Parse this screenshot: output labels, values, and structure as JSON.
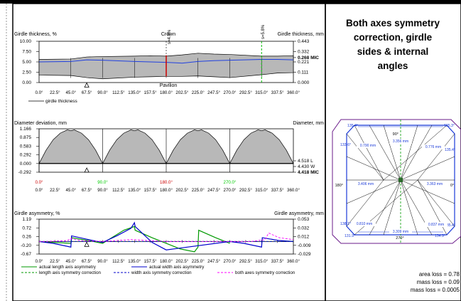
{
  "right_panel": {
    "title_lines": [
      "Both axes symmetry",
      "correction, girdle",
      "sides & internal",
      "angles"
    ],
    "loss_lines": [
      "area loss = 0.78",
      "mass loss = 0.09",
      "mass loss = 0.0005"
    ]
  },
  "diagram": {
    "corner_angles": [
      "135.4°",
      "135.3°",
      "133.6°",
      "135.4°",
      "138.1°",
      "135.4°",
      "131.9°",
      "134.9°"
    ],
    "side_angles": [
      "90°",
      "180°",
      "0°",
      "270°"
    ],
    "lengths": [
      "3.356 mm",
      "0.790 mm",
      "0.776 mm",
      "3.406 mm",
      "3.363 mm",
      "0.810 mm",
      "0.837 mm",
      "3.309 mm"
    ]
  },
  "chart_data": [
    {
      "type": "area",
      "title": "",
      "ylabel_left": "Girdle thickness, %",
      "ylabel_right": "Girdle thickness, mm",
      "yticks_left": [
        "10.00",
        "7.50",
        "5.00",
        "2.50",
        "0.00"
      ],
      "yticks_right": [
        "0.443",
        "0.332",
        "0.268 MIC",
        "0.221",
        "0.111",
        "0.000"
      ],
      "annotations": [
        "Crown",
        "Pavilion",
        "s=4.8%",
        "s=5.8%"
      ],
      "xticks": [
        "0.0°",
        "22.5°",
        "45.0°",
        "67.5°",
        "90.0°",
        "112.5°",
        "135.0°",
        "157.5°",
        "180.0°",
        "202.5°",
        "225.0°",
        "247.5°",
        "270.0°",
        "292.5°",
        "315.0°",
        "337.5°",
        "360.0°"
      ],
      "xlim": [
        0,
        360
      ],
      "ylim": [
        0,
        10
      ],
      "legend": [
        "girdle thickness"
      ],
      "x": [
        0,
        45,
        67.5,
        90,
        135,
        157.5,
        180,
        202.5,
        225,
        247.5,
        270,
        315,
        337.5,
        360
      ],
      "top": [
        5.6,
        5.7,
        6.2,
        6.3,
        6.4,
        6.5,
        6.4,
        6.7,
        7.1,
        6.9,
        6.8,
        6.4,
        6.4,
        6.5
      ],
      "bottom": [
        1.8,
        1.7,
        1.2,
        0.9,
        1.3,
        1.4,
        1.5,
        1.5,
        1.6,
        1.4,
        1.2,
        1.9,
        2.3,
        2.4
      ],
      "line": [
        5.0,
        5.1,
        5.5,
        5.4,
        5.1,
        5.0,
        4.9,
        4.7,
        5.1,
        5.3,
        5.4,
        5.6,
        5.6,
        5.5
      ]
    },
    {
      "type": "area",
      "title": "",
      "ylabel_left": "Diameter deviation, mm",
      "ylabel_right": "Diameter, mm",
      "yticks_left": [
        "1.166",
        "0.875",
        "0.583",
        "0.292",
        "0.000",
        "-0.292"
      ],
      "yticks_right": [
        "4.518 L",
        "4.430 W",
        "4.418 MIC"
      ],
      "xticks": [
        "0.0°",
        "22.5°",
        "45.0°",
        "67.5°",
        "90.0°",
        "112.5°",
        "135.0°",
        "157.5°",
        "180.0°",
        "202.5°",
        "225.0°",
        "247.5°",
        "270.0°",
        "292.5°",
        "315.0°",
        "337.5°",
        "360.0°"
      ],
      "highlight_ticks": [
        "0.0°",
        "90.0°",
        "180.0°",
        "270.0°"
      ],
      "xlim": [
        0,
        360
      ],
      "ylim": [
        -0.292,
        1.166
      ],
      "x": [
        0,
        10,
        20,
        30,
        40,
        45,
        50,
        60,
        70,
        80,
        90
      ],
      "values": [
        0.0,
        0.45,
        0.8,
        1.02,
        1.13,
        1.1,
        1.13,
        1.02,
        0.8,
        0.45,
        0.0
      ]
    },
    {
      "type": "line",
      "title": "",
      "ylabel_left": "Girdle asymmetry, %",
      "ylabel_right": "Girdle asymmetry, mm",
      "yticks_left": [
        "1.19",
        "0.72",
        "0.26",
        "-0.20",
        "-0.67"
      ],
      "yticks_right": [
        "0.053",
        "0.032",
        "0.012",
        "-0.009",
        "-0.029"
      ],
      "xticks": [
        "0.0°",
        "22.5°",
        "45.0°",
        "67.5°",
        "90.0°",
        "112.5°",
        "135.0°",
        "157.5°",
        "180.0°",
        "202.5°",
        "225.0°",
        "247.5°",
        "270.0°",
        "292.5°",
        "315.0°",
        "337.5°",
        "360.0°"
      ],
      "xlim": [
        0,
        360
      ],
      "ylim": [
        -0.67,
        1.19
      ],
      "series": [
        {
          "name": "actual length axis asymmetry",
          "color": "#009900",
          "x": [
            0,
            20,
            45,
            46,
            70,
            90,
            120,
            135,
            136,
            160,
            180,
            200,
            220,
            225,
            226,
            250,
            270
          ],
          "values": [
            0.0,
            -0.05,
            -0.1,
            0.2,
            0.05,
            -0.1,
            0.6,
            0.8,
            0.6,
            0.2,
            -0.1,
            -0.4,
            -0.55,
            -0.3,
            0.6,
            0.2,
            -0.1
          ]
        },
        {
          "name": "actual width axis asymmetry",
          "color": "#0000cc",
          "x": [
            0,
            20,
            45,
            46,
            70,
            90,
            110,
            130,
            135,
            136,
            160,
            180,
            270,
            290,
            315,
            316,
            340,
            360
          ],
          "values": [
            0.0,
            -0.1,
            -0.3,
            0.3,
            0.1,
            -0.05,
            0.3,
            0.7,
            1.0,
            0.8,
            -0.05,
            -0.45,
            0.0,
            -0.1,
            -0.3,
            0.2,
            0.05,
            0.0
          ]
        },
        {
          "name": "length axis symmetry correction",
          "color": "#009900",
          "dashed": true,
          "x": [
            0,
            360
          ],
          "values": [
            0.0,
            0.0
          ]
        },
        {
          "name": "width axis symmetry correction",
          "color": "#0000cc",
          "dashed": true,
          "x": [
            0,
            360
          ],
          "values": [
            0.0,
            0.0
          ]
        },
        {
          "name": "both axes symmetry correction",
          "color": "#ff00ff",
          "dashed": true,
          "x": [
            0,
            10,
            40,
            45,
            60,
            90,
            130,
            180,
            300,
            320,
            325,
            340,
            360
          ],
          "values": [
            0.0,
            0.0,
            0.05,
            0.15,
            0.05,
            0.0,
            0.1,
            0.0,
            0.0,
            0.1,
            0.45,
            0.2,
            0.1
          ]
        }
      ]
    }
  ]
}
